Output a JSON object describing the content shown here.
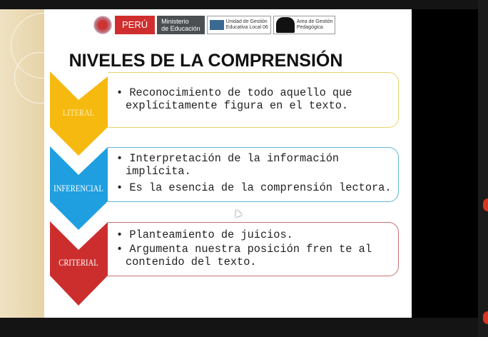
{
  "header": {
    "peru": "PERÚ",
    "minedu_1": "Ministerio",
    "minedu_2": "de Educación",
    "ugel_1": "Unidad de Gestión",
    "ugel_2": "Educativa Local 06",
    "agp_1": "Area de Gestión",
    "agp_2": "Pedagógica"
  },
  "title": "NIVELES DE LA COMPRENSIÓN",
  "levels": [
    {
      "label": "LITERAL",
      "color": "#f6b90f",
      "border": "#e9d46a",
      "bullets": [
        "Reconocimiento de todo aquello que explícitamente figura en el texto."
      ]
    },
    {
      "label": "INFERENCIAL",
      "color": "#1f9fe0",
      "border": "#5fb6d4",
      "bullets": [
        "Interpretación de la información implícita.",
        "Es la esencia de la comprensión lectora."
      ]
    },
    {
      "label": "CRITERIAL",
      "color": "#cc2e2e",
      "border": "#c77272",
      "bullets": [
        "Planteamiento de juicios.",
        "Argumenta nuestra posición fren te al contenido del texto."
      ]
    }
  ]
}
